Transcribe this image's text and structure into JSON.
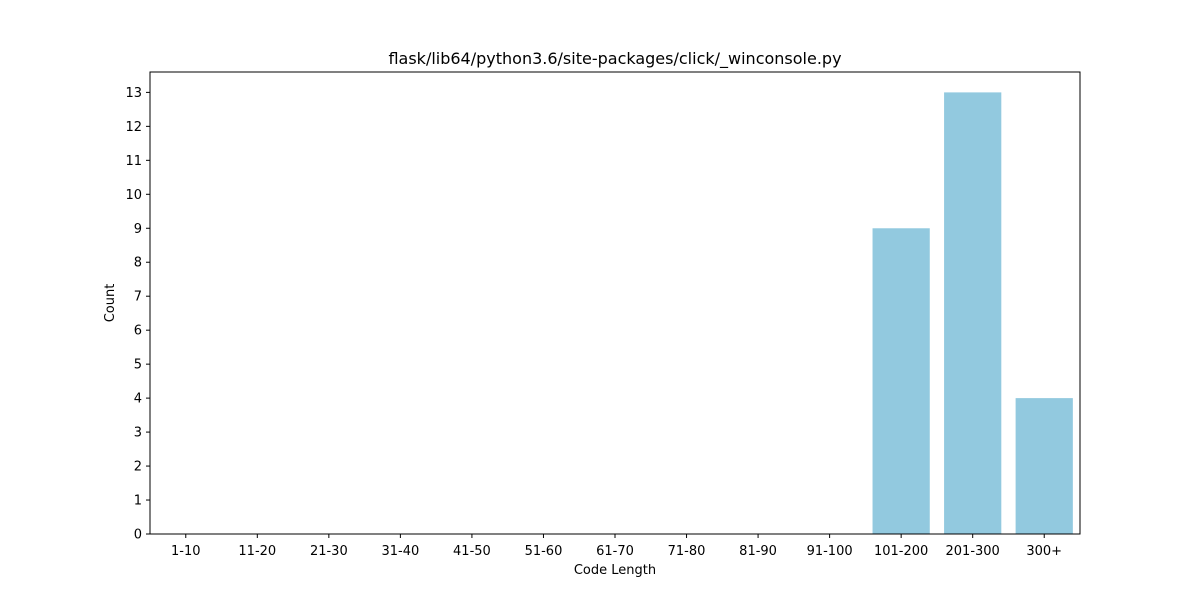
{
  "chart_data": {
    "type": "bar",
    "title": "flask/lib64/python3.6/site-packages/click/_winconsole.py",
    "xlabel": "Code Length",
    "ylabel": "Count",
    "categories": [
      "1-10",
      "11-20",
      "21-30",
      "31-40",
      "41-50",
      "51-60",
      "61-70",
      "71-80",
      "81-90",
      "91-100",
      "101-200",
      "201-300",
      "300+"
    ],
    "values": [
      0,
      0,
      0,
      0,
      0,
      0,
      0,
      0,
      0,
      0,
      9,
      13,
      4
    ],
    "ylim": [
      0,
      13.6
    ],
    "yticks": [
      0,
      1,
      2,
      3,
      4,
      5,
      6,
      7,
      8,
      9,
      10,
      11,
      12,
      13
    ],
    "bar_color": "#92c9df",
    "grid": false
  }
}
